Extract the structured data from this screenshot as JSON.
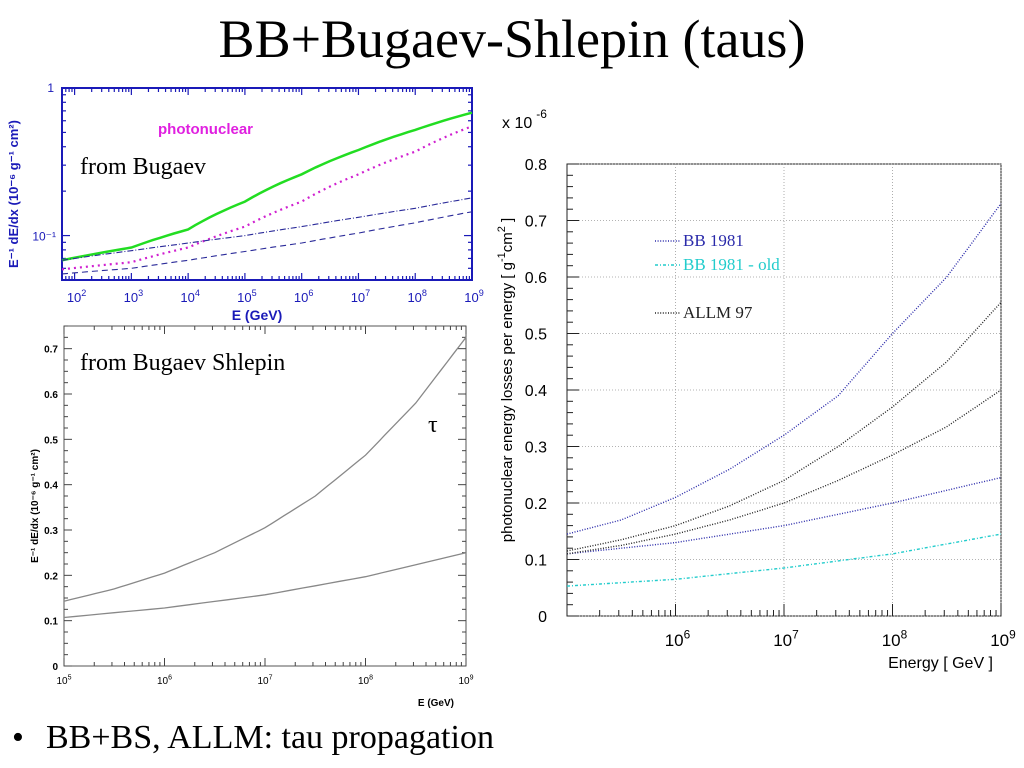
{
  "slide": {
    "title": "BB+Bugaev-Shlepin (taus)",
    "bullet": "BB+BS, ALLM: tau propagation",
    "bullet_symbol": "•"
  },
  "chart_data": [
    {
      "id": "panel-a",
      "type": "line",
      "annotation": "from Bugaev",
      "legend_label": "photonuclear",
      "xlabel": "E (GeV)",
      "ylabel": "E⁻¹ dE/dx (10⁻⁶ g⁻¹ cm²)",
      "xscale": "log",
      "yscale": "log",
      "xlim": [
        60,
        1000000000
      ],
      "ylim": [
        0.05,
        1
      ],
      "x_tick_exponents": [
        "2",
        "3",
        "4",
        "5",
        "6",
        "7",
        "8",
        "9"
      ],
      "x_tick_base": "10",
      "y_tick_labels": [
        "1",
        "10⁻¹"
      ],
      "colors": {
        "axis": "#1a1ab8",
        "legend": "#e020e0"
      },
      "series": [
        {
          "name": "total",
          "style": "solid",
          "color": "#22dd22",
          "x": [
            60,
            1000,
            10000,
            100000,
            1000000,
            10000000,
            100000000,
            1000000000
          ],
          "values": [
            0.068,
            0.083,
            0.11,
            0.17,
            0.26,
            0.38,
            0.52,
            0.68
          ]
        },
        {
          "name": "photonuclear",
          "style": "dotted",
          "color": "#d020d0",
          "x": [
            60,
            1000,
            10000,
            100000,
            1000000,
            10000000,
            100000000,
            1000000000
          ],
          "values": [
            0.059,
            0.066,
            0.083,
            0.115,
            0.17,
            0.26,
            0.37,
            0.55
          ]
        },
        {
          "name": "dash-dot",
          "style": "dashdot",
          "color": "#2a2a99",
          "x": [
            60,
            1000,
            10000,
            100000,
            1000000,
            10000000,
            100000000,
            1000000000
          ],
          "values": [
            0.068,
            0.079,
            0.089,
            0.1,
            0.115,
            0.133,
            0.153,
            0.18
          ]
        },
        {
          "name": "dashed",
          "style": "dashed",
          "color": "#2a2a99",
          "x": [
            60,
            1000,
            10000,
            100000,
            1000000,
            10000000,
            100000000,
            1000000000
          ],
          "values": [
            0.055,
            0.06,
            0.068,
            0.078,
            0.089,
            0.104,
            0.122,
            0.145
          ]
        }
      ]
    },
    {
      "id": "panel-b",
      "type": "line",
      "annotation": "from Bugaev Shlepin",
      "legend_label": "τ",
      "xlabel": "E (GeV)",
      "ylabel": "E⁻¹ dE/dx (10⁻⁶ g⁻¹ cm²)",
      "xscale": "log",
      "yscale": "linear",
      "xlim": [
        100000,
        1000000000
      ],
      "ylim": [
        0,
        0.75
      ],
      "y_ticks": [
        0,
        0.1,
        0.2,
        0.3,
        0.4,
        0.5,
        0.6,
        0.7
      ],
      "y_tick_labels": [
        "0",
        "0.1",
        "0.2",
        "0.3",
        "0.4",
        "0.5",
        "0.6",
        "0.7"
      ],
      "x_tick_exponents": [
        "5",
        "6",
        "7",
        "8",
        "9"
      ],
      "x_tick_base": "10",
      "series": [
        {
          "name": "upper",
          "color": "#888888",
          "x": [
            100000,
            316228,
            1000000,
            3162278,
            10000000,
            31622777,
            100000000,
            316227766,
            1000000000
          ],
          "values": [
            0.143,
            0.17,
            0.205,
            0.25,
            0.305,
            0.375,
            0.465,
            0.58,
            0.725
          ]
        },
        {
          "name": "lower",
          "color": "#888888",
          "x": [
            100000,
            1000000,
            10000000,
            100000000,
            1000000000
          ],
          "values": [
            0.107,
            0.128,
            0.157,
            0.197,
            0.25
          ]
        }
      ]
    },
    {
      "id": "panel-c",
      "type": "line",
      "exponent_label": "x 10",
      "exponent_value": "-6",
      "xlabel": "Energy [ GeV ]",
      "ylabel_parts": [
        "photonuclear energy losses per energy [ g",
        "-1",
        "cm",
        "2",
        " ]"
      ],
      "xscale": "log",
      "yscale": "linear",
      "xlim": [
        100000,
        1000000000
      ],
      "ylim": [
        0,
        0.8
      ],
      "y_ticks": [
        0,
        0.1,
        0.2,
        0.3,
        0.4,
        0.5,
        0.6,
        0.7,
        0.8
      ],
      "y_tick_labels": [
        "0",
        "0.1",
        "0.2",
        "0.3",
        "0.4",
        "0.5",
        "0.6",
        "0.7",
        "0.8"
      ],
      "x_major": [
        1000000,
        10000000,
        100000000,
        1000000000
      ],
      "x_tick_exponents": [
        "6",
        "7",
        "8",
        "9"
      ],
      "x_tick_base": "10",
      "grid": true,
      "legend": [
        {
          "label": "BB 1981",
          "color": "#2a2aaa"
        },
        {
          "label": "BB 1981 - old",
          "color": "#22cccc"
        },
        {
          "label": "ALLM 97",
          "color": "#222222"
        }
      ],
      "series": [
        {
          "name": "BB 1981 (upper)",
          "color": "#2a2aaa",
          "x": [
            100000,
            316228,
            1000000,
            3162278,
            10000000,
            31622777,
            100000000,
            316227766,
            1000000000
          ],
          "values": [
            0.145,
            0.17,
            0.21,
            0.26,
            0.32,
            0.39,
            0.5,
            0.6,
            0.73
          ]
        },
        {
          "name": "BB 1981 (lower)",
          "color": "#2a2aaa",
          "x": [
            100000,
            1000000,
            10000000,
            100000000,
            1000000000
          ],
          "values": [
            0.11,
            0.13,
            0.16,
            0.2,
            0.245
          ]
        },
        {
          "name": "BB 1981 - old",
          "color": "#22cccc",
          "x": [
            100000,
            1000000,
            10000000,
            100000000,
            1000000000
          ],
          "values": [
            0.053,
            0.065,
            0.085,
            0.11,
            0.145
          ]
        },
        {
          "name": "ALLM 97 (upper)",
          "color": "#222222",
          "x": [
            100000,
            316228,
            1000000,
            3162278,
            10000000,
            31622777,
            100000000,
            316227766,
            1000000000
          ],
          "values": [
            0.115,
            0.135,
            0.16,
            0.195,
            0.24,
            0.3,
            0.37,
            0.45,
            0.555
          ]
        },
        {
          "name": "ALLM 97 (lower)",
          "color": "#222222",
          "x": [
            100000,
            316228,
            1000000,
            3162278,
            10000000,
            31622777,
            100000000,
            316227766,
            1000000000
          ],
          "values": [
            0.11,
            0.125,
            0.145,
            0.17,
            0.2,
            0.24,
            0.285,
            0.335,
            0.4
          ]
        }
      ]
    }
  ]
}
